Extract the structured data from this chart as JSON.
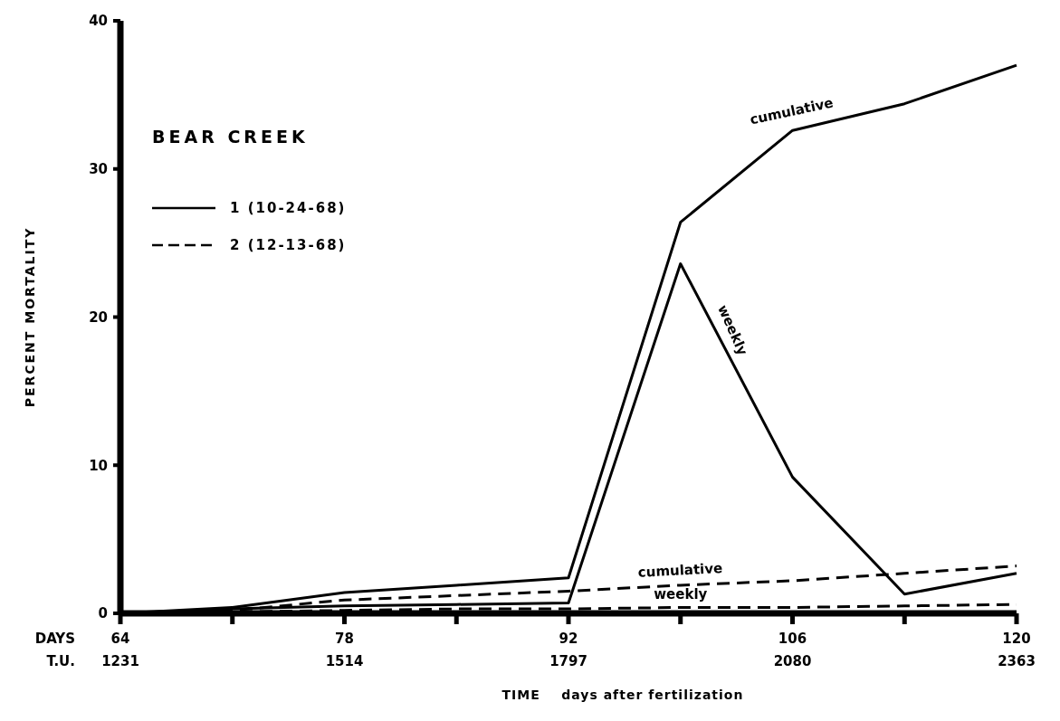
{
  "chart_data": {
    "type": "line",
    "xlabel": "TIME    days after fertilization",
    "ylabel": "PERCENT MORTALITY",
    "x2label": "T.U.",
    "legend_title": "BEAR CREEK",
    "legend": "top left",
    "xlim": [
      64,
      120
    ],
    "ylim": [
      0,
      40
    ],
    "xticks": [
      64,
      {
        "value": 71,
        "label": null
      },
      78,
      {
        "value": 85,
        "label": null
      },
      92,
      {
        "value": 99,
        "label": null
      },
      106,
      {
        "value": 113,
        "label": null
      },
      120
    ],
    "x2lim": [
      1231,
      2363
    ],
    "x2ticks": [
      1231,
      1514,
      1797,
      2080,
      2363
    ],
    "yticks": [
      0,
      10,
      20,
      30,
      40
    ],
    "series": [
      {
        "name": "1 (10-24-68)",
        "color": "#000000",
        "line_style": "solid",
        "x": [
          64,
          71,
          78,
          85,
          92,
          99,
          106,
          113,
          120
        ],
        "values": [
          0,
          0.4,
          1.4,
          1.9,
          2.4,
          26.4,
          32.6,
          34.4,
          37.0
        ]
      },
      {
        "color": "#000000",
        "line_style": "solid",
        "x": [
          64,
          71,
          78,
          85,
          92,
          99,
          106,
          113,
          120
        ],
        "values": [
          0,
          0.3,
          0.5,
          0.6,
          0.7,
          23.6,
          9.2,
          1.3,
          2.7
        ]
      },
      {
        "name": "2 (12-13-68)",
        "color": "#000000",
        "line_style": "dashed",
        "x": [
          64,
          71,
          78,
          85,
          92,
          99,
          106,
          113,
          120
        ],
        "values": [
          0,
          0.2,
          0.9,
          1.2,
          1.5,
          1.9,
          2.2,
          2.7,
          3.2
        ]
      },
      {
        "color": "#000000",
        "line_style": "dashed",
        "x": [
          64,
          71,
          78,
          85,
          92,
          99,
          106,
          113,
          120
        ],
        "values": [
          0,
          0.1,
          0.2,
          0.3,
          0.3,
          0.4,
          0.4,
          0.5,
          0.6
        ]
      }
    ],
    "annotations": [
      "cumulative",
      "weekly",
      "cumulative",
      "weekly",
      "DAYS"
    ]
  }
}
